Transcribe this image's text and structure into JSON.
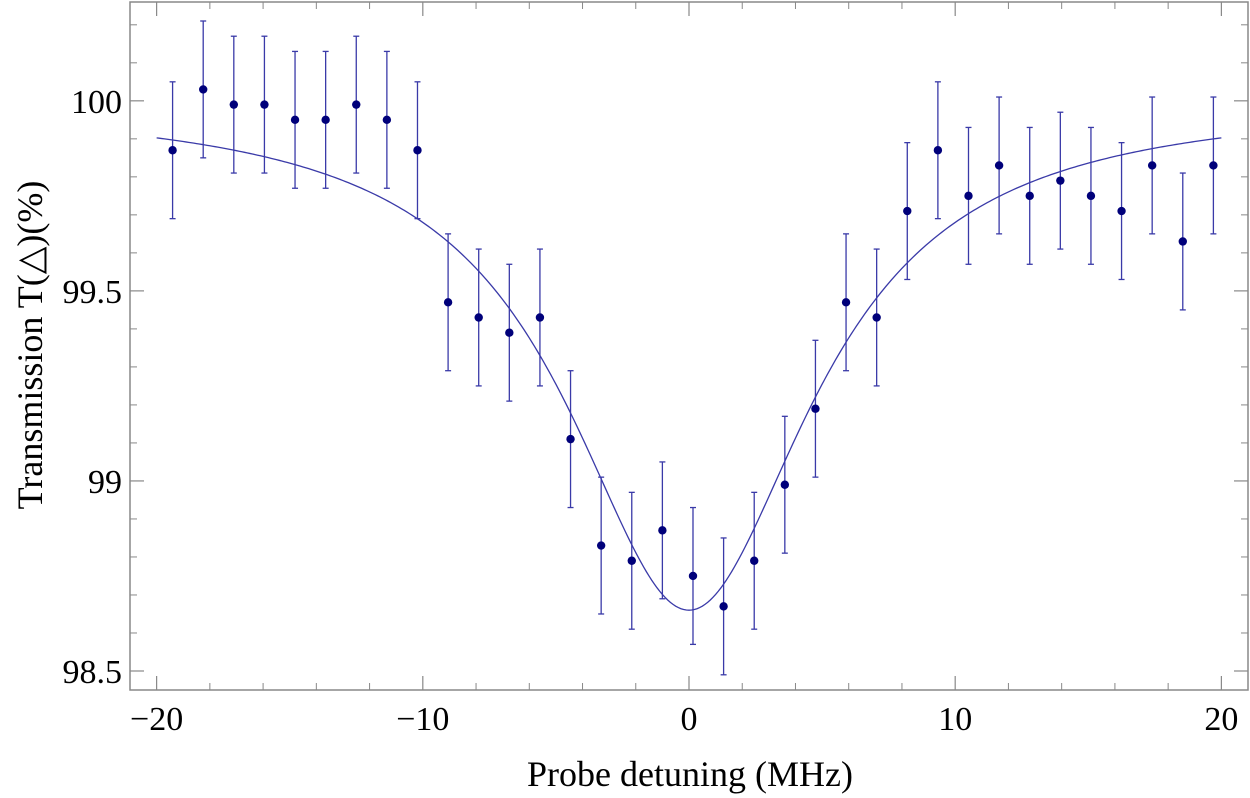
{
  "chart_data": {
    "type": "scatter",
    "title": "",
    "xlabel": "Probe detuning (MHz)",
    "ylabel": "Transmission  T(△)(%)",
    "xlim": [
      -21,
      21
    ],
    "ylim": [
      98.45,
      100.26
    ],
    "x_ticks": [
      -20,
      -10,
      0,
      10,
      20
    ],
    "x_tick_labels": [
      "−20",
      "−10",
      "0",
      "10",
      "20"
    ],
    "y_ticks": [
      98.5,
      99,
      99.5,
      100
    ],
    "y_tick_labels": [
      "98.5",
      "99",
      "99.5",
      "100"
    ],
    "grid": false,
    "legend": "none",
    "marker_color": "#00007a",
    "line_color": "#3a3aa8",
    "series": [
      {
        "kind": "points_with_error_bars",
        "x": [
          -19.4,
          -18.25,
          -17.1,
          -15.95,
          -14.8,
          -13.65,
          -12.5,
          -11.35,
          -10.2,
          -9.05,
          -7.9,
          -6.75,
          -5.6,
          -4.45,
          -3.3,
          -2.15,
          -1.0,
          0.15,
          1.3,
          2.45,
          3.6,
          4.75,
          5.9,
          7.05,
          8.2,
          9.35,
          10.5,
          11.65,
          12.8,
          13.95,
          15.1,
          16.25,
          17.4,
          18.55,
          19.7
        ],
        "y": [
          99.87,
          100.03,
          99.99,
          99.99,
          99.95,
          99.95,
          99.99,
          99.95,
          99.87,
          99.47,
          99.43,
          99.39,
          99.43,
          99.11,
          98.83,
          98.79,
          98.87,
          98.75,
          98.67,
          98.79,
          98.99,
          99.19,
          99.47,
          99.43,
          99.71,
          99.87,
          99.75,
          99.83,
          99.75,
          99.79,
          99.75,
          99.71,
          99.83,
          99.63,
          99.83
        ],
        "error": 0.18
      },
      {
        "kind": "fit_curve",
        "model": "T = 100 - A / (1 + (x - x0)^2 / w^2)",
        "A": 1.34,
        "x0": 0,
        "w": 5.6,
        "x_range": [
          -20,
          20
        ]
      }
    ]
  }
}
